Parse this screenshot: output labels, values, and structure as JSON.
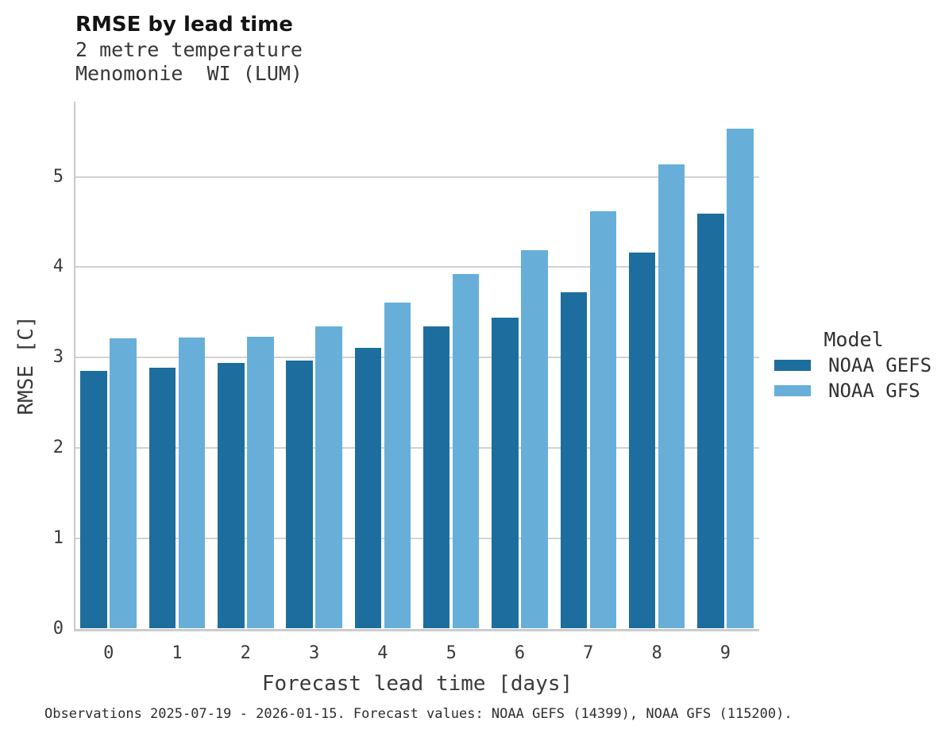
{
  "header": {
    "title": "RMSE by lead time",
    "subtitle_line1": "2 metre temperature",
    "subtitle_line2": "Menomonie  WI (LUM)"
  },
  "chart_data": {
    "type": "bar",
    "title": "RMSE by lead time",
    "subtitle": [
      "2 metre temperature",
      "Menomonie  WI (LUM)"
    ],
    "categories": [
      "0",
      "1",
      "2",
      "3",
      "4",
      "5",
      "6",
      "7",
      "8",
      "9"
    ],
    "series": [
      {
        "name": "NOAA GEFS",
        "color": "#1d6e9e",
        "values": [
          2.85,
          2.89,
          2.94,
          2.97,
          3.11,
          3.34,
          3.44,
          3.72,
          4.16,
          4.59
        ]
      },
      {
        "name": "NOAA GFS",
        "color": "#67afd9",
        "values": [
          3.21,
          3.22,
          3.23,
          3.34,
          3.61,
          3.92,
          4.19,
          4.62,
          5.14,
          5.53
        ]
      }
    ],
    "xlabel": "Forecast lead time [days]",
    "ylabel": "RMSE [C]",
    "ylim": [
      0,
      5.83
    ],
    "yticks": [
      0,
      1,
      2,
      3,
      4,
      5
    ],
    "grid": "horizontal-only",
    "grid_color": "#d2d2d2",
    "legend_position": "right"
  },
  "legend": {
    "title": "Model",
    "entries": [
      {
        "label": "NOAA GEFS",
        "color": "#1d6e9e"
      },
      {
        "label": "NOAA GFS",
        "color": "#67afd9"
      }
    ]
  },
  "caption": "Observations 2025-07-19 - 2026-01-15. Forecast values: NOAA GEFS (14399), NOAA GFS (115200)."
}
